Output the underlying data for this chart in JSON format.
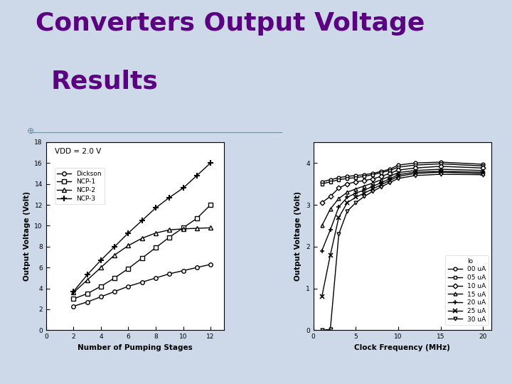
{
  "title_line1": "Converters Output Voltage",
  "title_line2": "Results",
  "title_color": "#5B0080",
  "fig_bg": "#cdd8e8",
  "plot_bg": "#ffffff",
  "left_annotation": "VDD = 2.0 V",
  "left_xlabel": "Number of Pumping Stages",
  "left_ylabel": "Output Voltage (Volt)",
  "left_xlim": [
    0,
    13
  ],
  "left_ylim": [
    0,
    18
  ],
  "left_xticks": [
    0,
    2,
    4,
    6,
    8,
    10,
    12
  ],
  "left_yticks": [
    0,
    2,
    4,
    6,
    8,
    10,
    12,
    14,
    16,
    18
  ],
  "dickson_x": [
    2,
    3,
    4,
    5,
    6,
    7,
    8,
    9,
    10,
    11,
    12
  ],
  "dickson_y": [
    2.3,
    2.7,
    3.2,
    3.7,
    4.2,
    4.6,
    5.0,
    5.4,
    5.7,
    6.0,
    6.3
  ],
  "ncp1_x": [
    2,
    3,
    4,
    5,
    6,
    7,
    8,
    9,
    10,
    11,
    12
  ],
  "ncp1_y": [
    3.0,
    3.5,
    4.2,
    5.0,
    5.9,
    6.9,
    7.9,
    8.9,
    9.8,
    10.7,
    12.0
  ],
  "ncp2_x": [
    2,
    3,
    4,
    5,
    6,
    7,
    8,
    9,
    10,
    11,
    12
  ],
  "ncp2_y": [
    3.6,
    4.8,
    6.0,
    7.2,
    8.1,
    8.8,
    9.3,
    9.6,
    9.7,
    9.75,
    9.8
  ],
  "ncp3_x": [
    2,
    3,
    4,
    5,
    6,
    7,
    8,
    9,
    10,
    11,
    12
  ],
  "ncp3_y": [
    3.7,
    5.3,
    6.7,
    8.0,
    9.3,
    10.5,
    11.7,
    12.7,
    13.6,
    14.8,
    16.0
  ],
  "right_xlabel": "Clock Frequency (MHz)",
  "right_ylabel": "Output Voltage (Volt)",
  "right_xlim": [
    0,
    21
  ],
  "right_ylim": [
    0.0,
    4.5
  ],
  "right_xticks": [
    0,
    5,
    10,
    15,
    20
  ],
  "right_yticks": [
    0.0,
    1.0,
    2.0,
    3.0,
    4.0
  ],
  "io_labels": [
    "00 uA",
    "05 uA",
    "10 uA",
    "15 uA",
    "20 uA",
    "25 uA",
    "30 uA"
  ],
  "io_markers": [
    "o",
    "s",
    "D",
    "^",
    "+",
    "x",
    "v"
  ],
  "io_x": [
    1,
    2,
    3,
    4,
    5,
    6,
    7,
    8,
    9,
    10,
    12,
    15,
    20
  ],
  "io_00": [
    3.55,
    3.6,
    3.65,
    3.68,
    3.7,
    3.72,
    3.75,
    3.8,
    3.85,
    3.95,
    4.0,
    4.02,
    3.97
  ],
  "io_05": [
    3.5,
    3.55,
    3.6,
    3.63,
    3.65,
    3.68,
    3.72,
    3.77,
    3.82,
    3.9,
    3.95,
    3.98,
    3.93
  ],
  "io_10": [
    3.05,
    3.2,
    3.4,
    3.5,
    3.55,
    3.58,
    3.62,
    3.68,
    3.75,
    3.83,
    3.88,
    3.92,
    3.88
  ],
  "io_15": [
    2.5,
    2.9,
    3.15,
    3.3,
    3.38,
    3.45,
    3.52,
    3.6,
    3.68,
    3.77,
    3.82,
    3.85,
    3.82
  ],
  "io_20": [
    1.9,
    2.4,
    2.95,
    3.18,
    3.28,
    3.35,
    3.44,
    3.53,
    3.62,
    3.72,
    3.78,
    3.8,
    3.78
  ],
  "io_25": [
    0.8,
    1.8,
    2.7,
    3.05,
    3.18,
    3.28,
    3.38,
    3.48,
    3.58,
    3.68,
    3.75,
    3.78,
    3.75
  ],
  "io_30": [
    0.0,
    0.02,
    2.3,
    2.85,
    3.05,
    3.2,
    3.32,
    3.43,
    3.53,
    3.63,
    3.7,
    3.73,
    3.72
  ]
}
